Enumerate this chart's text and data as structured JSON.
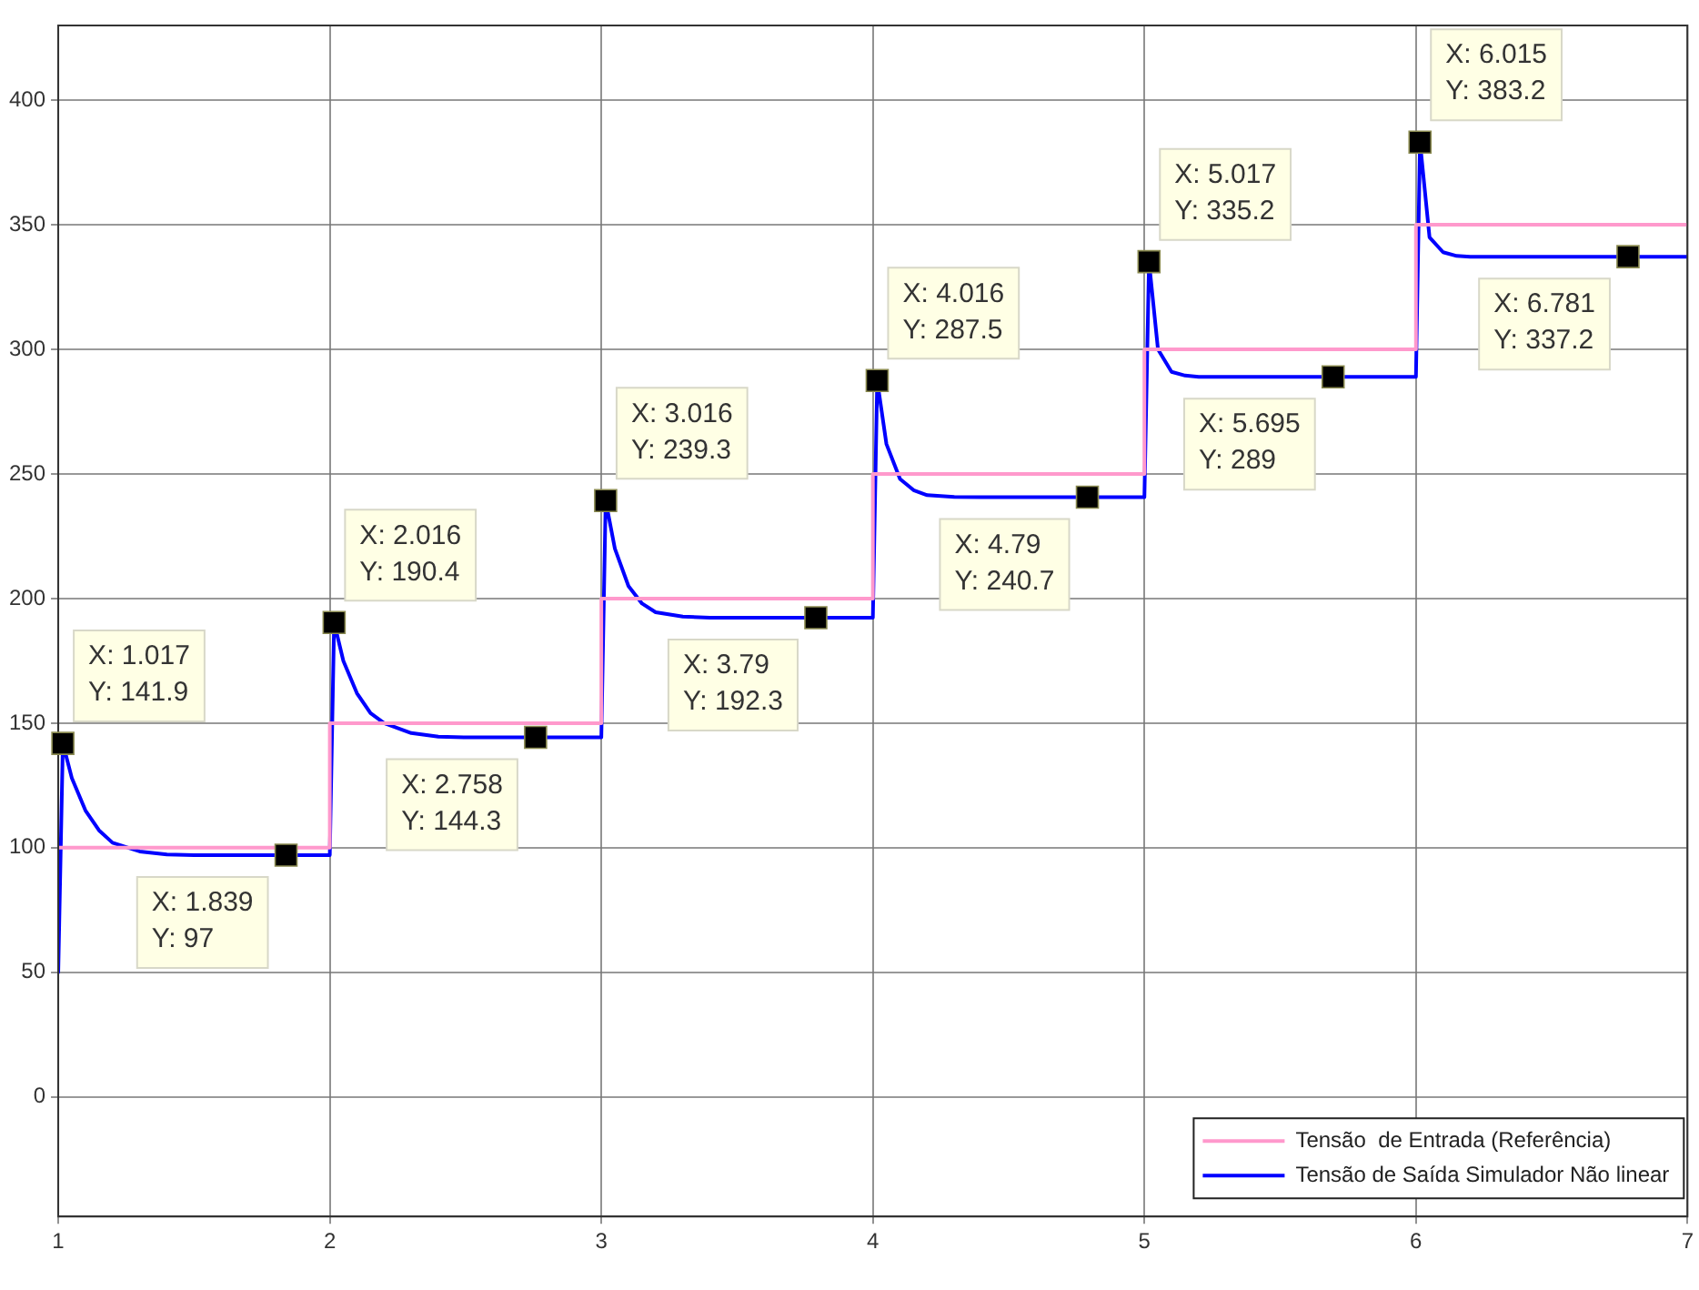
{
  "chart_data": {
    "type": "line",
    "xlim": [
      1,
      7
    ],
    "xticks": [
      1,
      2,
      3,
      4,
      5,
      6,
      7
    ],
    "ylim": [
      -48,
      430
    ],
    "yticks": [
      0,
      50,
      100,
      150,
      200,
      250,
      300,
      350,
      400
    ],
    "grid": true,
    "legend": "bottom right",
    "marker": "none",
    "line_style": "solid",
    "series": [
      {
        "name": "Tensão  de Entrada (Referência)",
        "type": "step",
        "color": "#ff99cc",
        "x": [
          1,
          2,
          3,
          4,
          5,
          6,
          7
        ],
        "values": [
          100,
          150,
          200,
          250,
          300,
          350,
          350
        ]
      },
      {
        "name": "Tensão de Saída Simulador Não linear",
        "type": "line",
        "color": "#0000ff",
        "x": [
          1,
          1.017,
          1.05,
          1.1,
          1.15,
          1.2,
          1.3,
          1.4,
          1.5,
          1.839,
          2,
          2.016,
          2.05,
          2.1,
          2.15,
          2.2,
          2.3,
          2.4,
          2.5,
          2.758,
          3,
          3.016,
          3.05,
          3.1,
          3.15,
          3.2,
          3.3,
          3.4,
          3.79,
          4,
          4.016,
          4.05,
          4.1,
          4.15,
          4.2,
          4.3,
          4.4,
          4.79,
          5,
          5.017,
          5.05,
          5.1,
          5.15,
          5.2,
          5.3,
          5.695,
          6,
          6.015,
          6.05,
          6.1,
          6.15,
          6.2,
          6.781,
          7
        ],
        "values": [
          50,
          141.9,
          128,
          115,
          107,
          102,
          98.5,
          97.3,
          97,
          97,
          97,
          190.4,
          175,
          162,
          154,
          150,
          146,
          144.6,
          144.3,
          144.3,
          144.3,
          239.3,
          220,
          205,
          198,
          194.5,
          192.8,
          192.3,
          192.3,
          192.3,
          287.5,
          262,
          248,
          243.5,
          241.5,
          240.8,
          240.7,
          240.7,
          240.7,
          335.2,
          300,
          291,
          289.5,
          289,
          289,
          289,
          289,
          383.2,
          345,
          339,
          337.5,
          337.2,
          337.2,
          337.2
        ]
      }
    ],
    "annotations": [
      {
        "text": "X: 1.017\nY: 141.9",
        "x": 1.017,
        "y": 141.9
      },
      {
        "text": "X: 1.839\nY: 97",
        "x": 1.839,
        "y": 97
      },
      {
        "text": "X: 2.016\nY: 190.4",
        "x": 2.016,
        "y": 190.4
      },
      {
        "text": "X: 2.758\nY: 144.3",
        "x": 2.758,
        "y": 144.3
      },
      {
        "text": "X: 3.016\nY: 239.3",
        "x": 3.016,
        "y": 239.3
      },
      {
        "text": "X: 3.79\nY: 192.3",
        "x": 3.79,
        "y": 192.3
      },
      {
        "text": "X: 4.016\nY: 287.5",
        "x": 4.016,
        "y": 287.5
      },
      {
        "text": "X: 4.79\nY: 240.7",
        "x": 4.79,
        "y": 240.7
      },
      {
        "text": "X: 5.017\nY: 335.2",
        "x": 5.017,
        "y": 335.2
      },
      {
        "text": "X: 5.695\nY: 289",
        "x": 5.695,
        "y": 289
      },
      {
        "text": "X: 6.015\nY: 383.2",
        "x": 6.015,
        "y": 383.2
      },
      {
        "text": "X: 6.781\nY: 337.2",
        "x": 6.781,
        "y": 337.2
      }
    ]
  }
}
